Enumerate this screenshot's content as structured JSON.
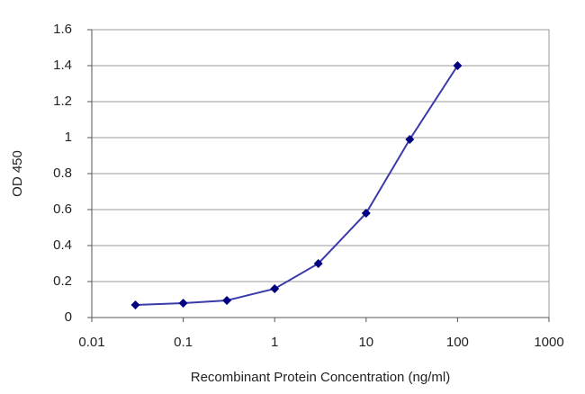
{
  "chart_data": {
    "type": "line",
    "x_label": "Recombinant Protein Concentration (ng/ml)",
    "y_label": "OD 450",
    "x": [
      0.03,
      0.1,
      0.3,
      1,
      3,
      10,
      30,
      100
    ],
    "series": [
      {
        "name": "OD 450",
        "color": "#3a3aa8",
        "marker_color": "#000080",
        "values": [
          0.07,
          0.08,
          0.095,
          0.16,
          0.3,
          0.58,
          0.99,
          1.4
        ]
      }
    ],
    "xscale": "log",
    "xlim": [
      0.01,
      1000
    ],
    "xticks": [
      0.01,
      0.1,
      1,
      10,
      100,
      1000
    ],
    "ylim": [
      0,
      1.6
    ],
    "yticks": [
      0,
      0.2,
      0.4,
      0.6,
      0.8,
      1,
      1.2,
      1.4,
      1.6
    ],
    "grid": true
  }
}
